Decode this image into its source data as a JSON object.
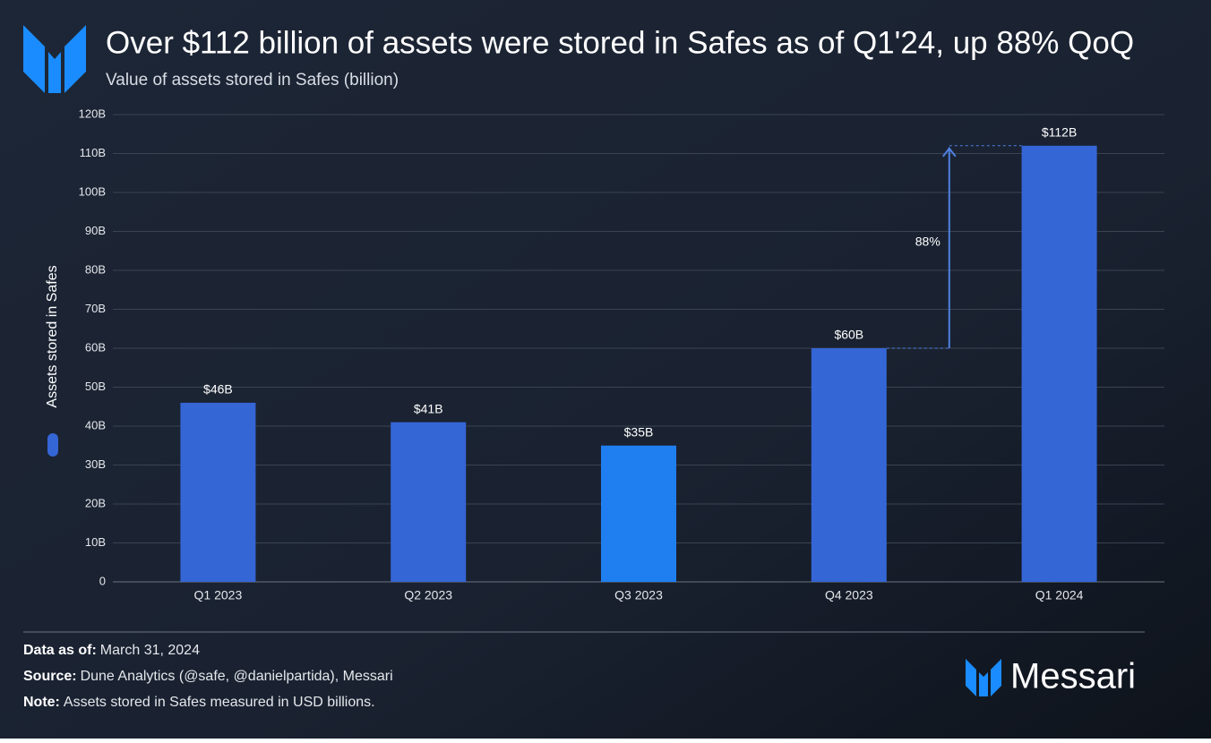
{
  "chart_data": {
    "type": "bar",
    "title": "Over $112 billion of assets were stored in Safes as of Q1'24, up 88% QoQ",
    "subtitle": "Value of assets stored in Safes (billion)",
    "y_label": "Assets stored in Safes",
    "categories": [
      "Q1 2023",
      "Q2 2023",
      "Q3 2023",
      "Q4 2023",
      "Q1 2024"
    ],
    "values": [
      46,
      41,
      35,
      60,
      112
    ],
    "value_labels": [
      "$46B",
      "$41B",
      "$35B",
      "$60B",
      "$112B"
    ],
    "colors": [
      "#3566d6",
      "#3566d6",
      "#1f7ff0",
      "#3566d6",
      "#3566d6"
    ],
    "ylim": [
      0,
      120
    ],
    "yticks": [
      0,
      {
        "value": 10,
        "label": "10B"
      },
      {
        "value": 20,
        "label": "20B"
      },
      {
        "value": 30,
        "label": "30B"
      },
      {
        "value": 40,
        "label": "40B"
      },
      {
        "value": 50,
        "label": "50B"
      },
      {
        "value": 60,
        "label": "60B"
      },
      {
        "value": 70,
        "label": "70B"
      },
      {
        "value": 80,
        "label": "80B"
      },
      {
        "value": 90,
        "label": "90B"
      },
      {
        "value": 100,
        "label": "100B"
      },
      {
        "value": 110,
        "label": "110B"
      },
      {
        "value": 120,
        "label": "120B"
      }
    ],
    "grid": true,
    "annotation": "88%"
  },
  "footer": {
    "notes": [
      {
        "label": "Data as of:",
        "text": "March 31, 2024"
      },
      {
        "label": "Source:",
        "text": "Dune Analytics (@safe, @danielpartida), Messari"
      },
      {
        "label": "Note:",
        "text": "Assets stored in Safes measured in USD billions."
      }
    ],
    "brand": "Messari"
  }
}
